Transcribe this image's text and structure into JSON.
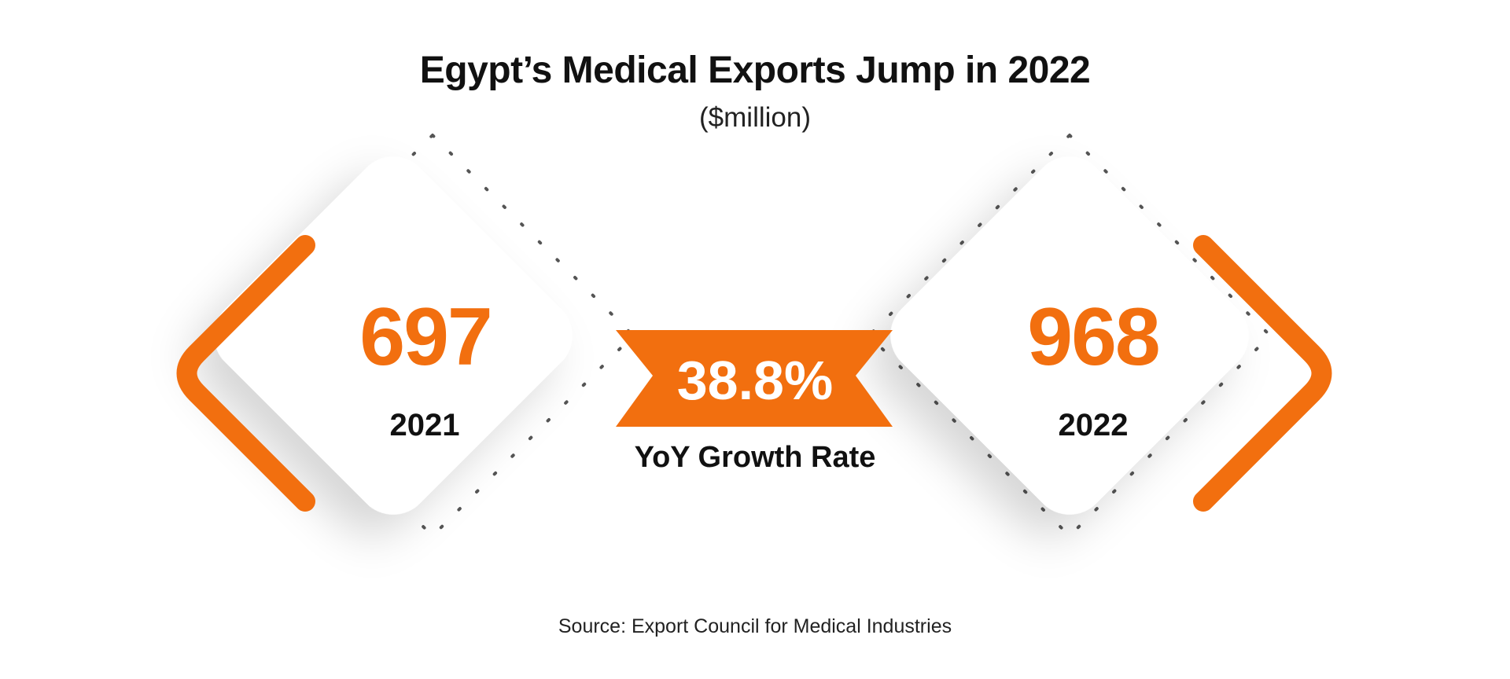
{
  "chart_data": {
    "type": "bar",
    "title": "Egypt’s Medical Exports Jump in 2022",
    "subtitle": "($million)",
    "categories": [
      "2021",
      "2022"
    ],
    "values": [
      697,
      968
    ],
    "value_labels": [
      "697",
      "968"
    ],
    "growth": {
      "value": 38.8,
      "value_label": "38.8%",
      "label": "YoY Growth Rate"
    },
    "source": "Source: Export Council for Medical Industries"
  },
  "colors": {
    "accent": "#f26f0f",
    "text_dark": "#111111",
    "background": "#ffffff"
  }
}
